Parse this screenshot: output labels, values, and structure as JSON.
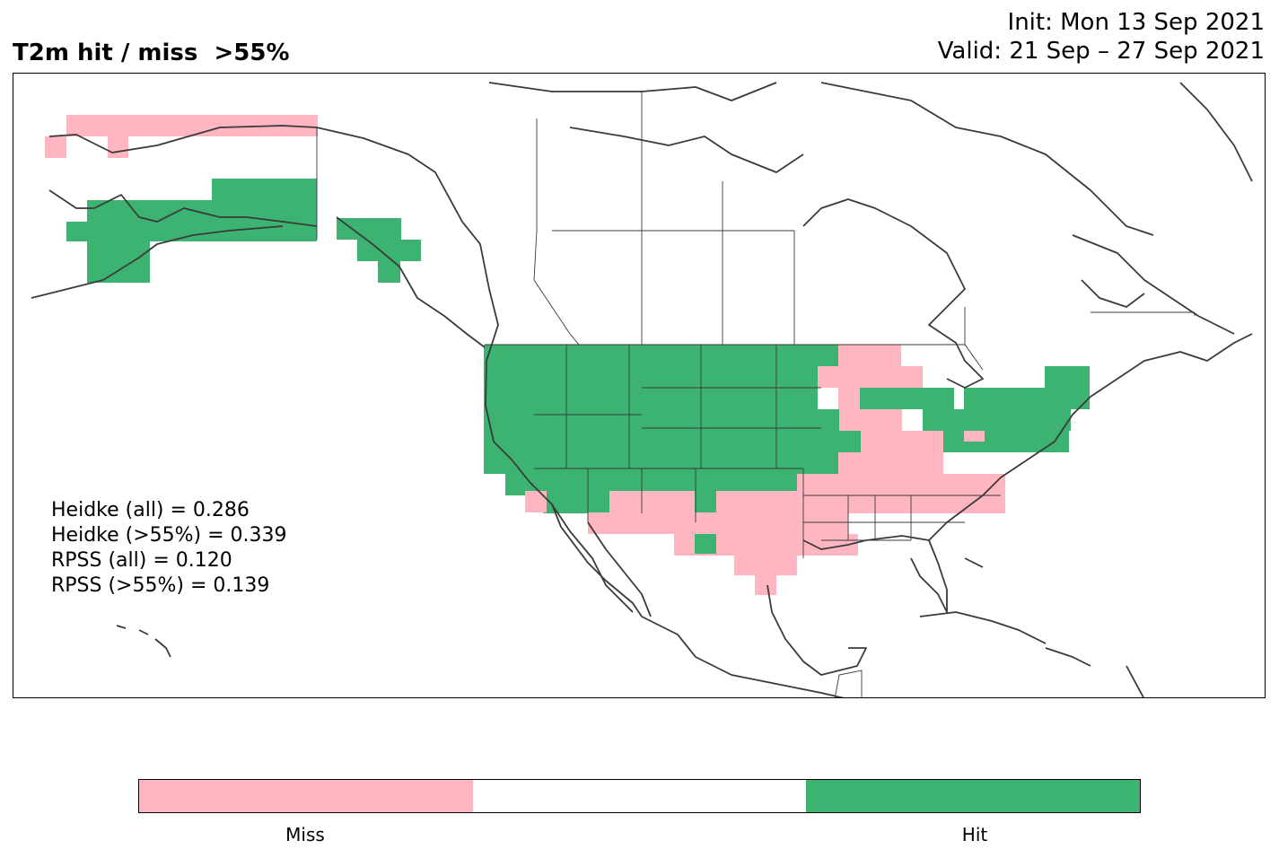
{
  "header": {
    "title": "T2m hit / miss  >55%",
    "init": "Init: Mon 13 Sep 2021",
    "valid": "Valid: 21 Sep – 27 Sep 2021"
  },
  "stats": [
    "Heidke (all) = 0.286",
    "Heidke (>55%) = 0.339",
    "RPSS (all) = 0.120",
    "RPSS (>55%) = 0.139"
  ],
  "colorbar": {
    "segments": [
      "#ffb6c1",
      "#ffffff",
      "#3cb371"
    ],
    "labels": [
      "Miss",
      "Hit"
    ]
  },
  "colors": {
    "miss": "#ffb6c1",
    "hit": "#3cb371",
    "coastline": "#3a3a3a"
  }
}
